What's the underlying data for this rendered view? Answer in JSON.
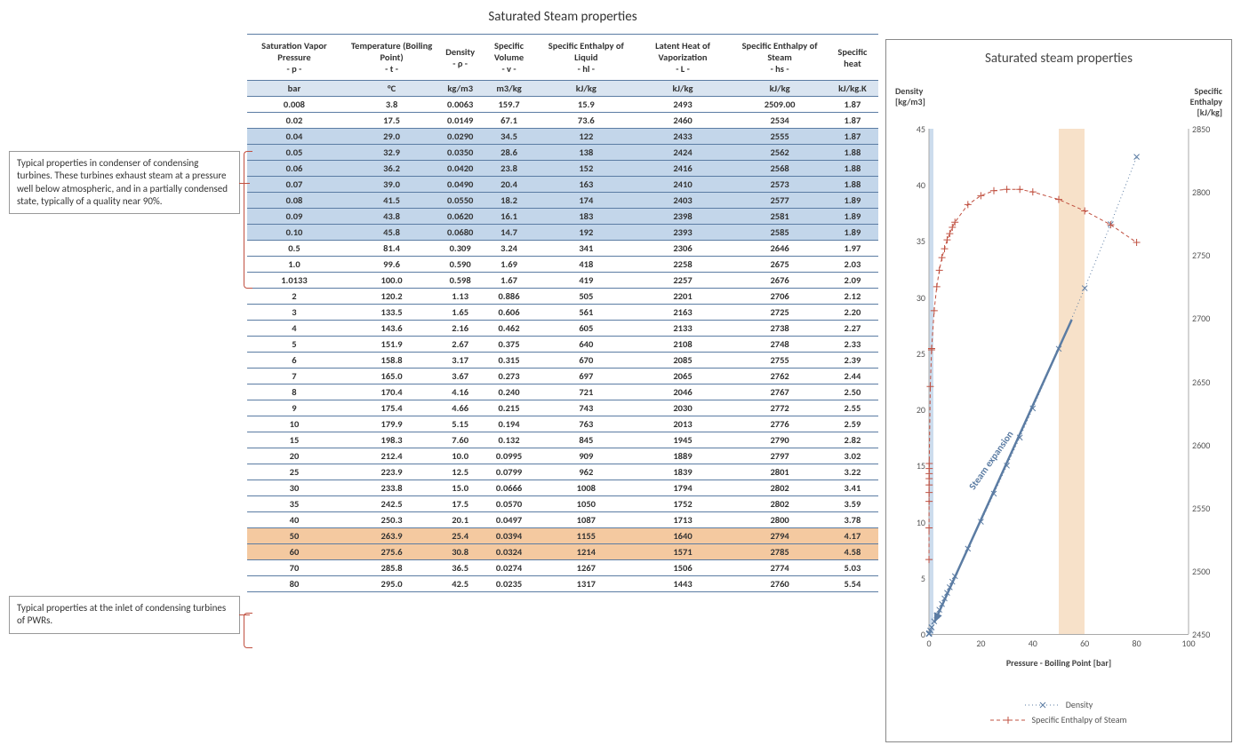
{
  "main_title": "Saturated Steam properties",
  "annotations": {
    "condenser": "Typical properties in condenser of condensing turbines. These turbines exhaust steam at a pressure well below atmospheric, and in a partially condensed state, typically of a quality near 90%.",
    "inlet": "Typical properties at the inlet of condensing turbines of PWRs."
  },
  "table": {
    "columns": [
      {
        "h1": "Saturation Vapor Pressure",
        "h2": "- p -",
        "unit": "bar"
      },
      {
        "h1": "Temperature (Boiling Point)",
        "h2": "- t -",
        "unit": "°C"
      },
      {
        "h1": "Density",
        "h2": "- ρ -",
        "unit": "kg/m3"
      },
      {
        "h1": "Specific Volume",
        "h2": "- v -",
        "unit": "m3/kg"
      },
      {
        "h1": "Specific Enthalpy of Liquid",
        "h2": "- hl -",
        "unit": "kJ/kg"
      },
      {
        "h1": "Latent Heat of Vaporization",
        "h2": "- L -",
        "unit": "kJ/kg"
      },
      {
        "h1": "Specific Enthalpy of Steam",
        "h2": "- hs -",
        "unit": "kJ/kg"
      },
      {
        "h1": "Specific heat",
        "h2": "",
        "unit": "kJ/kg.K"
      }
    ],
    "rows": [
      {
        "hl": "",
        "cells": [
          "0.008",
          "3.8",
          "0.0063",
          "159.7",
          "15.9",
          "2493",
          "2509.00",
          "1.87"
        ]
      },
      {
        "hl": "",
        "cells": [
          "0.02",
          "17.5",
          "0.0149",
          "67.1",
          "73.6",
          "2460",
          "2534",
          "1.87"
        ]
      },
      {
        "hl": "blue",
        "cells": [
          "0.04",
          "29.0",
          "0.0290",
          "34.5",
          "122",
          "2433",
          "2555",
          "1.87"
        ]
      },
      {
        "hl": "blue",
        "cells": [
          "0.05",
          "32.9",
          "0.0350",
          "28.6",
          "138",
          "2424",
          "2562",
          "1.88"
        ]
      },
      {
        "hl": "blue",
        "cells": [
          "0.06",
          "36.2",
          "0.0420",
          "23.8",
          "152",
          "2416",
          "2568",
          "1.88"
        ]
      },
      {
        "hl": "blue",
        "cells": [
          "0.07",
          "39.0",
          "0.0490",
          "20.4",
          "163",
          "2410",
          "2573",
          "1.88"
        ]
      },
      {
        "hl": "blue",
        "cells": [
          "0.08",
          "41.5",
          "0.0550",
          "18.2",
          "174",
          "2403",
          "2577",
          "1.89"
        ]
      },
      {
        "hl": "blue",
        "cells": [
          "0.09",
          "43.8",
          "0.0620",
          "16.1",
          "183",
          "2398",
          "2581",
          "1.89"
        ]
      },
      {
        "hl": "blue",
        "cells": [
          "0.10",
          "45.8",
          "0.0680",
          "14.7",
          "192",
          "2393",
          "2585",
          "1.89"
        ]
      },
      {
        "hl": "",
        "cells": [
          "0.5",
          "81.4",
          "0.309",
          "3.24",
          "341",
          "2306",
          "2646",
          "1.97"
        ]
      },
      {
        "hl": "",
        "cells": [
          "1.0",
          "99.6",
          "0.590",
          "1.69",
          "418",
          "2258",
          "2675",
          "2.03"
        ]
      },
      {
        "hl": "",
        "cells": [
          "1.0133",
          "100.0",
          "0.598",
          "1.67",
          "419",
          "2257",
          "2676",
          "2.09"
        ]
      },
      {
        "hl": "",
        "cells": [
          "2",
          "120.2",
          "1.13",
          "0.886",
          "505",
          "2201",
          "2706",
          "2.12"
        ]
      },
      {
        "hl": "",
        "cells": [
          "3",
          "133.5",
          "1.65",
          "0.606",
          "561",
          "2163",
          "2725",
          "2.20"
        ]
      },
      {
        "hl": "",
        "cells": [
          "4",
          "143.6",
          "2.16",
          "0.462",
          "605",
          "2133",
          "2738",
          "2.27"
        ]
      },
      {
        "hl": "",
        "cells": [
          "5",
          "151.9",
          "2.67",
          "0.375",
          "640",
          "2108",
          "2748",
          "2.33"
        ]
      },
      {
        "hl": "",
        "cells": [
          "6",
          "158.8",
          "3.17",
          "0.315",
          "670",
          "2085",
          "2755",
          "2.39"
        ]
      },
      {
        "hl": "",
        "cells": [
          "7",
          "165.0",
          "3.67",
          "0.273",
          "697",
          "2065",
          "2762",
          "2.44"
        ]
      },
      {
        "hl": "",
        "cells": [
          "8",
          "170.4",
          "4.16",
          "0.240",
          "721",
          "2046",
          "2767",
          "2.50"
        ]
      },
      {
        "hl": "",
        "cells": [
          "9",
          "175.4",
          "4.66",
          "0.215",
          "743",
          "2030",
          "2772",
          "2.55"
        ]
      },
      {
        "hl": "",
        "cells": [
          "10",
          "179.9",
          "5.15",
          "0.194",
          "763",
          "2013",
          "2776",
          "2.59"
        ]
      },
      {
        "hl": "",
        "cells": [
          "15",
          "198.3",
          "7.60",
          "0.132",
          "845",
          "1945",
          "2790",
          "2.82"
        ]
      },
      {
        "hl": "",
        "cells": [
          "20",
          "212.4",
          "10.0",
          "0.0995",
          "909",
          "1889",
          "2797",
          "3.02"
        ]
      },
      {
        "hl": "",
        "cells": [
          "25",
          "223.9",
          "12.5",
          "0.0799",
          "962",
          "1839",
          "2801",
          "3.22"
        ]
      },
      {
        "hl": "",
        "cells": [
          "30",
          "233.8",
          "15.0",
          "0.0666",
          "1008",
          "1794",
          "2802",
          "3.41"
        ]
      },
      {
        "hl": "",
        "cells": [
          "35",
          "242.5",
          "17.5",
          "0.0570",
          "1050",
          "1752",
          "2802",
          "3.59"
        ]
      },
      {
        "hl": "",
        "cells": [
          "40",
          "250.3",
          "20.1",
          "0.0497",
          "1087",
          "1713",
          "2800",
          "3.78"
        ]
      },
      {
        "hl": "orange",
        "cells": [
          "50",
          "263.9",
          "25.4",
          "0.0394",
          "1155",
          "1640",
          "2794",
          "4.17"
        ]
      },
      {
        "hl": "orange",
        "cells": [
          "60",
          "275.6",
          "30.8",
          "0.0324",
          "1214",
          "1571",
          "2785",
          "4.58"
        ]
      },
      {
        "hl": "",
        "cells": [
          "70",
          "285.8",
          "36.5",
          "0.0274",
          "1267",
          "1506",
          "2774",
          "5.03"
        ]
      },
      {
        "hl": "",
        "cells": [
          "80",
          "295.0",
          "42.5",
          "0.0235",
          "1317",
          "1443",
          "2760",
          "5.54"
        ]
      }
    ]
  },
  "chart": {
    "title": "Saturated steam properties",
    "y_left": {
      "label": "Density\n[kg/m3]",
      "min": 0,
      "max": 45,
      "step": 5
    },
    "y_right": {
      "label": "Specific\nEnthalpy\n[kJ/kg]",
      "min": 2450,
      "max": 2850,
      "step": 50
    },
    "x": {
      "label": "Pressure - Boiling Point [bar]",
      "min": 0,
      "max": 100,
      "step": 20
    },
    "band": {
      "from": 50,
      "to": 60,
      "color": "#f6dcbf"
    },
    "vertical_band": {
      "at": 0.1,
      "width": 2,
      "color": "#c3d6ea"
    },
    "series": {
      "density": {
        "label": "Density",
        "color": "#5b7ca3",
        "marker": "x",
        "style": "dotted",
        "data": [
          [
            0.008,
            0.0063
          ],
          [
            0.02,
            0.0149
          ],
          [
            0.04,
            0.029
          ],
          [
            0.05,
            0.035
          ],
          [
            0.06,
            0.042
          ],
          [
            0.07,
            0.049
          ],
          [
            0.08,
            0.055
          ],
          [
            0.09,
            0.062
          ],
          [
            0.1,
            0.068
          ],
          [
            0.5,
            0.309
          ],
          [
            1.0,
            0.59
          ],
          [
            1.0133,
            0.598
          ],
          [
            2,
            1.13
          ],
          [
            3,
            1.65
          ],
          [
            4,
            2.16
          ],
          [
            5,
            2.67
          ],
          [
            6,
            3.17
          ],
          [
            7,
            3.67
          ],
          [
            8,
            4.16
          ],
          [
            9,
            4.66
          ],
          [
            10,
            5.15
          ],
          [
            15,
            7.6
          ],
          [
            20,
            10.0
          ],
          [
            25,
            12.5
          ],
          [
            30,
            15.0
          ],
          [
            35,
            17.5
          ],
          [
            40,
            20.1
          ],
          [
            50,
            25.4
          ],
          [
            60,
            30.8
          ],
          [
            70,
            36.5
          ],
          [
            80,
            42.5
          ]
        ]
      },
      "enthalpy": {
        "label": "Specific Enthalpy of Steam",
        "color": "#c05040",
        "marker": "+",
        "style": "dashed",
        "data": [
          [
            0.008,
            2509
          ],
          [
            0.02,
            2534
          ],
          [
            0.04,
            2555
          ],
          [
            0.05,
            2562
          ],
          [
            0.06,
            2568
          ],
          [
            0.07,
            2573
          ],
          [
            0.08,
            2577
          ],
          [
            0.09,
            2581
          ],
          [
            0.1,
            2585
          ],
          [
            0.5,
            2646
          ],
          [
            1.0,
            2675
          ],
          [
            1.0133,
            2676
          ],
          [
            2,
            2706
          ],
          [
            3,
            2725
          ],
          [
            4,
            2738
          ],
          [
            5,
            2748
          ],
          [
            6,
            2755
          ],
          [
            7,
            2762
          ],
          [
            8,
            2767
          ],
          [
            9,
            2772
          ],
          [
            10,
            2776
          ],
          [
            15,
            2790
          ],
          [
            20,
            2797
          ],
          [
            25,
            2801
          ],
          [
            30,
            2802
          ],
          [
            35,
            2802
          ],
          [
            40,
            2800
          ],
          [
            50,
            2794
          ],
          [
            60,
            2785
          ],
          [
            70,
            2774
          ],
          [
            80,
            2760
          ]
        ]
      }
    },
    "arrow": {
      "from": [
        55,
        28
      ],
      "to": [
        2,
        1
      ],
      "color": "#5b7ca3",
      "label": "Steam expansion"
    }
  },
  "colors": {
    "table_border": "#5b7ca3",
    "row_blue": "#c3d6ea",
    "row_orange": "#f4c9a0",
    "bracket": "#c05040"
  }
}
